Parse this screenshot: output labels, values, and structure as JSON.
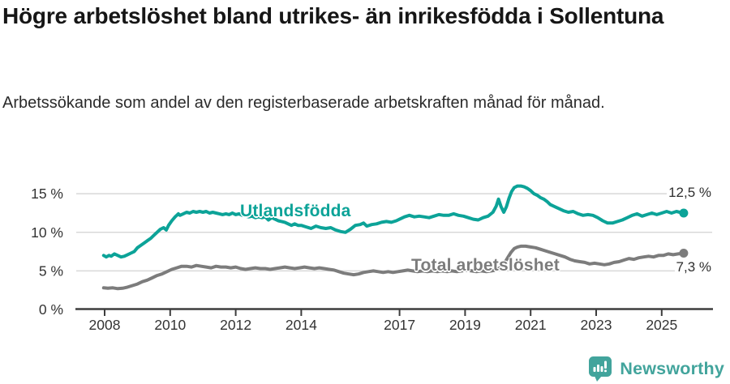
{
  "header": {
    "title": "Högre arbetslöshet bland utrikes- än inrikesfödda i Sollentuna",
    "subtitle": "Arbetssökande som andel av den registerbaserade arbetskraften månad för månad."
  },
  "chart_data": {
    "type": "line",
    "title": "Högre arbetslöshet bland utrikes- än inrikesfödda i Sollentuna",
    "subtitle": "Arbetssökande som andel av den registerbaserade arbetskraften månad för månad.",
    "unit": "%",
    "grid": "horizontal",
    "legend_position": "inline-labels-on-lines",
    "x_axis": {
      "tick_years": [
        2008,
        2010,
        2012,
        2014,
        2017,
        2019,
        2021,
        2023,
        2025
      ],
      "range_years": [
        2007.95,
        2025.67
      ]
    },
    "y_axis": {
      "ticks": [
        0,
        5,
        10,
        15
      ],
      "tick_labels": [
        "0 %",
        "5 %",
        "10 %",
        "15 %"
      ],
      "range": [
        0,
        17.3
      ]
    },
    "series": [
      {
        "name": "Utlandsfödda",
        "color": "#0ca398",
        "end_label": "12,5 %",
        "end_value": 12.5,
        "points": [
          [
            2007.97,
            7.0
          ],
          [
            2008.05,
            6.8
          ],
          [
            2008.13,
            7.0
          ],
          [
            2008.2,
            6.9
          ],
          [
            2008.3,
            7.2
          ],
          [
            2008.4,
            7.0
          ],
          [
            2008.5,
            6.8
          ],
          [
            2008.6,
            6.9
          ],
          [
            2008.7,
            7.1
          ],
          [
            2008.8,
            7.3
          ],
          [
            2008.9,
            7.5
          ],
          [
            2009.0,
            8.0
          ],
          [
            2009.1,
            8.3
          ],
          [
            2009.2,
            8.6
          ],
          [
            2009.3,
            8.9
          ],
          [
            2009.4,
            9.2
          ],
          [
            2009.5,
            9.6
          ],
          [
            2009.6,
            10.0
          ],
          [
            2009.7,
            10.4
          ],
          [
            2009.8,
            10.6
          ],
          [
            2009.88,
            10.3
          ],
          [
            2009.95,
            10.9
          ],
          [
            2010.05,
            11.5
          ],
          [
            2010.15,
            12.0
          ],
          [
            2010.25,
            12.4
          ],
          [
            2010.3,
            12.2
          ],
          [
            2010.4,
            12.4
          ],
          [
            2010.5,
            12.6
          ],
          [
            2010.6,
            12.5
          ],
          [
            2010.7,
            12.7
          ],
          [
            2010.8,
            12.6
          ],
          [
            2010.9,
            12.7
          ],
          [
            2011.0,
            12.6
          ],
          [
            2011.1,
            12.7
          ],
          [
            2011.2,
            12.5
          ],
          [
            2011.3,
            12.6
          ],
          [
            2011.4,
            12.5
          ],
          [
            2011.5,
            12.4
          ],
          [
            2011.6,
            12.3
          ],
          [
            2011.7,
            12.4
          ],
          [
            2011.8,
            12.3
          ],
          [
            2011.9,
            12.5
          ],
          [
            2012.0,
            12.3
          ],
          [
            2012.1,
            12.4
          ],
          [
            2012.2,
            12.2
          ],
          [
            2012.3,
            12.1
          ],
          [
            2012.4,
            12.0
          ],
          [
            2012.5,
            12.1
          ],
          [
            2012.6,
            11.9
          ],
          [
            2012.7,
            12.0
          ],
          [
            2012.8,
            11.9
          ],
          [
            2012.9,
            12.0
          ],
          [
            2013.0,
            11.6
          ],
          [
            2013.1,
            11.9
          ],
          [
            2013.2,
            11.7
          ],
          [
            2013.3,
            11.5
          ],
          [
            2013.4,
            11.4
          ],
          [
            2013.5,
            11.3
          ],
          [
            2013.6,
            11.1
          ],
          [
            2013.7,
            10.9
          ],
          [
            2013.8,
            11.1
          ],
          [
            2013.9,
            10.9
          ],
          [
            2014.0,
            10.9
          ],
          [
            2014.15,
            10.7
          ],
          [
            2014.3,
            10.5
          ],
          [
            2014.45,
            10.8
          ],
          [
            2014.6,
            10.6
          ],
          [
            2014.75,
            10.5
          ],
          [
            2014.9,
            10.6
          ],
          [
            2015.05,
            10.3
          ],
          [
            2015.2,
            10.1
          ],
          [
            2015.35,
            10.0
          ],
          [
            2015.5,
            10.4
          ],
          [
            2015.65,
            10.9
          ],
          [
            2015.8,
            11.0
          ],
          [
            2015.9,
            11.2
          ],
          [
            2016.0,
            10.8
          ],
          [
            2016.15,
            11.0
          ],
          [
            2016.3,
            11.1
          ],
          [
            2016.45,
            11.3
          ],
          [
            2016.6,
            11.4
          ],
          [
            2016.75,
            11.3
          ],
          [
            2016.9,
            11.5
          ],
          [
            2017.0,
            11.7
          ],
          [
            2017.15,
            12.0
          ],
          [
            2017.3,
            12.2
          ],
          [
            2017.45,
            12.0
          ],
          [
            2017.6,
            12.1
          ],
          [
            2017.75,
            12.0
          ],
          [
            2017.9,
            11.9
          ],
          [
            2018.05,
            12.1
          ],
          [
            2018.2,
            12.3
          ],
          [
            2018.35,
            12.2
          ],
          [
            2018.5,
            12.2
          ],
          [
            2018.65,
            12.4
          ],
          [
            2018.8,
            12.2
          ],
          [
            2018.95,
            12.1
          ],
          [
            2019.1,
            11.9
          ],
          [
            2019.25,
            11.7
          ],
          [
            2019.4,
            11.6
          ],
          [
            2019.55,
            11.9
          ],
          [
            2019.7,
            12.1
          ],
          [
            2019.85,
            12.6
          ],
          [
            2019.95,
            13.4
          ],
          [
            2020.02,
            14.3
          ],
          [
            2020.1,
            13.3
          ],
          [
            2020.18,
            12.6
          ],
          [
            2020.26,
            13.3
          ],
          [
            2020.34,
            14.4
          ],
          [
            2020.42,
            15.3
          ],
          [
            2020.5,
            15.8
          ],
          [
            2020.6,
            16.0
          ],
          [
            2020.7,
            16.0
          ],
          [
            2020.8,
            15.9
          ],
          [
            2020.9,
            15.7
          ],
          [
            2021.0,
            15.4
          ],
          [
            2021.1,
            15.0
          ],
          [
            2021.2,
            14.8
          ],
          [
            2021.3,
            14.5
          ],
          [
            2021.4,
            14.3
          ],
          [
            2021.5,
            14.0
          ],
          [
            2021.6,
            13.6
          ],
          [
            2021.7,
            13.4
          ],
          [
            2021.8,
            13.2
          ],
          [
            2021.9,
            13.0
          ],
          [
            2022.0,
            12.8
          ],
          [
            2022.15,
            12.6
          ],
          [
            2022.3,
            12.7
          ],
          [
            2022.45,
            12.4
          ],
          [
            2022.6,
            12.2
          ],
          [
            2022.75,
            12.3
          ],
          [
            2022.9,
            12.2
          ],
          [
            2023.05,
            11.9
          ],
          [
            2023.2,
            11.5
          ],
          [
            2023.35,
            11.2
          ],
          [
            2023.5,
            11.2
          ],
          [
            2023.65,
            11.4
          ],
          [
            2023.8,
            11.6
          ],
          [
            2023.95,
            11.9
          ],
          [
            2024.1,
            12.2
          ],
          [
            2024.25,
            12.4
          ],
          [
            2024.4,
            12.1
          ],
          [
            2024.55,
            12.3
          ],
          [
            2024.7,
            12.5
          ],
          [
            2024.85,
            12.3
          ],
          [
            2025.0,
            12.5
          ],
          [
            2025.15,
            12.7
          ],
          [
            2025.3,
            12.5
          ],
          [
            2025.45,
            12.7
          ],
          [
            2025.55,
            12.6
          ],
          [
            2025.67,
            12.5
          ]
        ]
      },
      {
        "name": "Total arbetslöshet",
        "color": "#7c7c7c",
        "end_label": "7,3 %",
        "end_value": 7.3,
        "points": [
          [
            2007.97,
            2.8
          ],
          [
            2008.1,
            2.75
          ],
          [
            2008.25,
            2.8
          ],
          [
            2008.4,
            2.7
          ],
          [
            2008.55,
            2.75
          ],
          [
            2008.7,
            2.9
          ],
          [
            2008.85,
            3.1
          ],
          [
            2009.0,
            3.3
          ],
          [
            2009.15,
            3.6
          ],
          [
            2009.3,
            3.8
          ],
          [
            2009.45,
            4.1
          ],
          [
            2009.6,
            4.4
          ],
          [
            2009.75,
            4.6
          ],
          [
            2009.9,
            4.9
          ],
          [
            2010.05,
            5.2
          ],
          [
            2010.2,
            5.4
          ],
          [
            2010.35,
            5.6
          ],
          [
            2010.5,
            5.6
          ],
          [
            2010.65,
            5.5
          ],
          [
            2010.8,
            5.7
          ],
          [
            2010.95,
            5.6
          ],
          [
            2011.1,
            5.5
          ],
          [
            2011.25,
            5.4
          ],
          [
            2011.4,
            5.6
          ],
          [
            2011.55,
            5.5
          ],
          [
            2011.7,
            5.5
          ],
          [
            2011.85,
            5.4
          ],
          [
            2012.0,
            5.5
          ],
          [
            2012.15,
            5.3
          ],
          [
            2012.3,
            5.2
          ],
          [
            2012.45,
            5.3
          ],
          [
            2012.6,
            5.4
          ],
          [
            2012.75,
            5.3
          ],
          [
            2012.9,
            5.3
          ],
          [
            2013.05,
            5.2
          ],
          [
            2013.2,
            5.3
          ],
          [
            2013.35,
            5.4
          ],
          [
            2013.5,
            5.5
          ],
          [
            2013.65,
            5.4
          ],
          [
            2013.8,
            5.3
          ],
          [
            2013.95,
            5.4
          ],
          [
            2014.1,
            5.5
          ],
          [
            2014.25,
            5.4
          ],
          [
            2014.4,
            5.3
          ],
          [
            2014.55,
            5.4
          ],
          [
            2014.7,
            5.3
          ],
          [
            2014.85,
            5.2
          ],
          [
            2015.0,
            5.1
          ],
          [
            2015.15,
            4.9
          ],
          [
            2015.3,
            4.7
          ],
          [
            2015.45,
            4.6
          ],
          [
            2015.6,
            4.5
          ],
          [
            2015.75,
            4.6
          ],
          [
            2015.9,
            4.8
          ],
          [
            2016.05,
            4.9
          ],
          [
            2016.2,
            5.0
          ],
          [
            2016.35,
            4.9
          ],
          [
            2016.5,
            4.8
          ],
          [
            2016.65,
            4.9
          ],
          [
            2016.8,
            4.8
          ],
          [
            2016.95,
            4.9
          ],
          [
            2017.1,
            5.0
          ],
          [
            2017.25,
            5.1
          ],
          [
            2017.4,
            5.0
          ],
          [
            2017.55,
            4.9
          ],
          [
            2017.7,
            5.0
          ],
          [
            2017.85,
            4.9
          ],
          [
            2018.0,
            5.0
          ],
          [
            2018.15,
            4.9
          ],
          [
            2018.3,
            5.0
          ],
          [
            2018.45,
            4.9
          ],
          [
            2018.6,
            5.0
          ],
          [
            2018.75,
            4.9
          ],
          [
            2018.9,
            5.0
          ],
          [
            2019.05,
            5.1
          ],
          [
            2019.2,
            5.0
          ],
          [
            2019.35,
            4.9
          ],
          [
            2019.5,
            5.0
          ],
          [
            2019.65,
            4.9
          ],
          [
            2019.8,
            5.0
          ],
          [
            2019.95,
            5.1
          ],
          [
            2020.1,
            5.5
          ],
          [
            2020.2,
            6.0
          ],
          [
            2020.3,
            6.7
          ],
          [
            2020.4,
            7.4
          ],
          [
            2020.5,
            7.9
          ],
          [
            2020.6,
            8.1
          ],
          [
            2020.7,
            8.2
          ],
          [
            2020.85,
            8.2
          ],
          [
            2021.0,
            8.1
          ],
          [
            2021.15,
            8.0
          ],
          [
            2021.3,
            7.8
          ],
          [
            2021.45,
            7.6
          ],
          [
            2021.6,
            7.4
          ],
          [
            2021.75,
            7.2
          ],
          [
            2021.9,
            7.0
          ],
          [
            2022.05,
            6.8
          ],
          [
            2022.2,
            6.5
          ],
          [
            2022.35,
            6.3
          ],
          [
            2022.5,
            6.2
          ],
          [
            2022.65,
            6.1
          ],
          [
            2022.8,
            5.9
          ],
          [
            2022.95,
            6.0
          ],
          [
            2023.1,
            5.9
          ],
          [
            2023.25,
            5.8
          ],
          [
            2023.4,
            5.9
          ],
          [
            2023.55,
            6.1
          ],
          [
            2023.7,
            6.2
          ],
          [
            2023.85,
            6.4
          ],
          [
            2024.0,
            6.6
          ],
          [
            2024.15,
            6.5
          ],
          [
            2024.3,
            6.7
          ],
          [
            2024.45,
            6.8
          ],
          [
            2024.6,
            6.9
          ],
          [
            2024.75,
            6.8
          ],
          [
            2024.9,
            7.0
          ],
          [
            2025.05,
            7.0
          ],
          [
            2025.2,
            7.2
          ],
          [
            2025.35,
            7.1
          ],
          [
            2025.5,
            7.2
          ],
          [
            2025.67,
            7.3
          ]
        ]
      }
    ]
  },
  "footer": {
    "brand": "Newsworthy",
    "brand_color": "#42a49c"
  }
}
